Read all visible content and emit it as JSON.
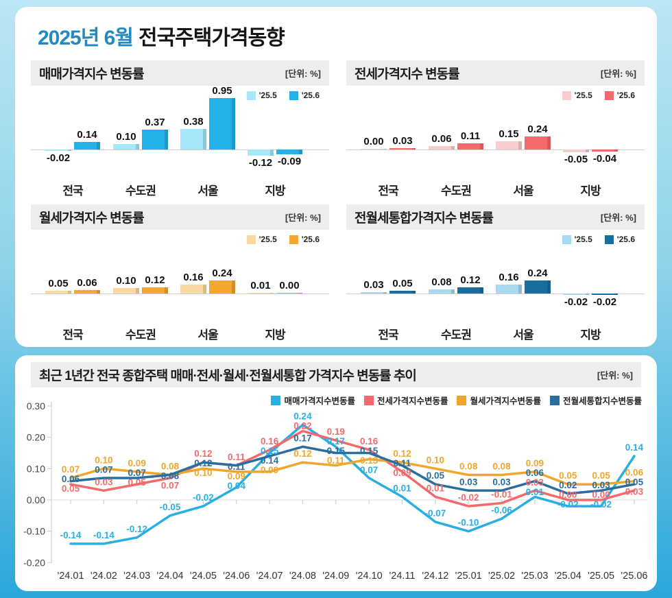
{
  "title": {
    "highlight": "2025년 6월",
    "rest": "전국주택가격동향"
  },
  "chart_data": [
    {
      "type": "bar",
      "title": "매매가격지수 변동률",
      "unit": "[단위: %]",
      "categories": [
        "전국",
        "수도권",
        "서울",
        "지방"
      ],
      "legend_position": "top-right",
      "series": [
        {
          "name": "'25.5",
          "color": "#a6e7fa",
          "values": [
            -0.02,
            0.1,
            0.38,
            -0.12
          ]
        },
        {
          "name": "'25.6",
          "color": "#22b1e8",
          "values": [
            0.14,
            0.37,
            0.95,
            -0.09
          ]
        }
      ]
    },
    {
      "type": "bar",
      "title": "전세가격지수 변동률",
      "unit": "[단위: %]",
      "categories": [
        "전국",
        "수도권",
        "서울",
        "지방"
      ],
      "legend_position": "top-right",
      "series": [
        {
          "name": "'25.5",
          "color": "#f9cdd0",
          "values": [
            0.0,
            0.06,
            0.15,
            -0.05
          ]
        },
        {
          "name": "'25.6",
          "color": "#f4696c",
          "values": [
            0.03,
            0.11,
            0.24,
            -0.04
          ]
        }
      ]
    },
    {
      "type": "bar",
      "title": "월세가격지수 변동률",
      "unit": "[단위: %]",
      "categories": [
        "전국",
        "수도권",
        "서울",
        "지방"
      ],
      "legend_position": "top-right",
      "series": [
        {
          "name": "'25.5",
          "color": "#fbd8a2",
          "values": [
            0.05,
            0.1,
            0.16,
            0.01
          ]
        },
        {
          "name": "'25.6",
          "color": "#f3a72f",
          "values": [
            0.06,
            0.12,
            0.24,
            0.0
          ]
        }
      ]
    },
    {
      "type": "bar",
      "title": "전월세통합가격지수 변동률",
      "unit": "[단위: %]",
      "categories": [
        "전국",
        "수도권",
        "서울",
        "지방"
      ],
      "legend_position": "top-right",
      "series": [
        {
          "name": "'25.5",
          "color": "#a6daf0",
          "values": [
            0.03,
            0.08,
            0.16,
            -0.02
          ]
        },
        {
          "name": "'25.6",
          "color": "#1a6e9f",
          "values": [
            0.05,
            0.12,
            0.24,
            -0.02
          ]
        }
      ]
    },
    {
      "type": "line",
      "title": "최근 1년간 전국 종합주택 매매·전세·월세·전월세통합 가격지수 변동률 추이",
      "unit": "[단위: %]",
      "legend_position": "top-right",
      "grid": "zero-line-only",
      "ylim": [
        -0.2,
        0.3
      ],
      "y_ticks": [
        "0.30",
        "0.20",
        "0.10",
        "0.00",
        "-0.10",
        "-0.20"
      ],
      "x_labels": [
        "'24.01",
        "'24.02",
        "'24.03",
        "'24.04",
        "'24.05",
        "'24.06",
        "'24.07",
        "'24.08",
        "'24.09",
        "'24.10",
        "'24.11",
        "'24.12",
        "'25.01",
        "'25.02",
        "'25.03",
        "'25.04",
        "'25.05",
        "'25.06"
      ],
      "series": [
        {
          "name": "매매가격지수변동률",
          "color": "#29aee3",
          "values": [
            -0.14,
            -0.14,
            -0.12,
            -0.05,
            -0.02,
            0.04,
            0.15,
            0.24,
            0.17,
            0.07,
            0.01,
            -0.07,
            -0.1,
            -0.06,
            0.01,
            -0.02,
            -0.02,
            0.14
          ]
        },
        {
          "name": "전세가격지수변동률",
          "color": "#f4696c",
          "values": [
            0.05,
            0.03,
            0.05,
            0.07,
            0.12,
            0.11,
            0.16,
            0.22,
            0.19,
            0.16,
            0.09,
            0.01,
            -0.02,
            -0.01,
            0.03,
            0.0,
            0.0,
            0.03
          ]
        },
        {
          "name": "월세가격지수변동률",
          "color": "#f0a52d",
          "values": [
            0.07,
            0.1,
            0.09,
            0.08,
            0.1,
            0.09,
            0.09,
            0.12,
            0.11,
            0.13,
            0.12,
            0.1,
            0.08,
            0.08,
            0.09,
            0.05,
            0.05,
            0.06
          ]
        },
        {
          "name": "전월세통합지수변동률",
          "color": "#2a6d9f",
          "values": [
            0.06,
            0.07,
            0.07,
            0.08,
            0.12,
            0.11,
            0.14,
            0.17,
            0.15,
            0.15,
            0.11,
            0.05,
            0.03,
            0.03,
            0.06,
            0.02,
            0.03,
            0.05
          ]
        }
      ]
    }
  ]
}
